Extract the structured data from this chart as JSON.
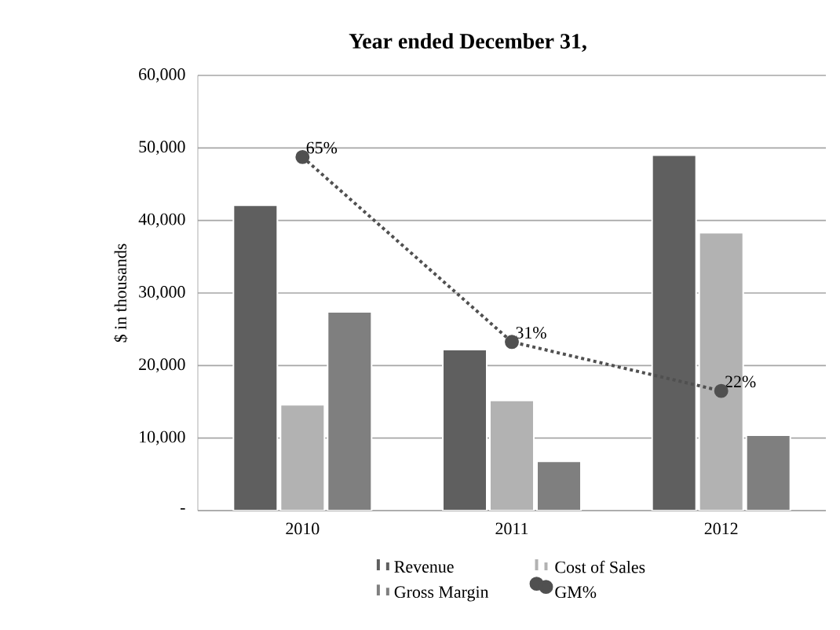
{
  "chart_data": {
    "type": "bar",
    "title": "Year ended December 31,",
    "ylabel": "$ in thousands",
    "categories": [
      "2010",
      "2011",
      "2012"
    ],
    "series": [
      {
        "name": "Revenue",
        "color": "#5f5f5f",
        "values": [
          42100,
          22200,
          49000
        ]
      },
      {
        "name": "Cost of Sales",
        "color": "#b2b2b2",
        "values": [
          14600,
          15200,
          38300
        ]
      },
      {
        "name": "Gross Margin",
        "color": "#7f7f7f",
        "values": [
          27400,
          6800,
          10400
        ]
      },
      {
        "name": "GM%",
        "type": "line",
        "axis": "y2",
        "color": "#505050",
        "values": [
          65,
          31,
          22
        ],
        "value_labels": [
          "65%",
          "31%",
          "22%"
        ],
        "marker": "circle",
        "line_style": "dotted"
      }
    ],
    "ylim": [
      0,
      60000
    ],
    "yticks": [
      {
        "value": 0,
        "label": "-"
      },
      {
        "value": 10000,
        "label": "10,000"
      },
      {
        "value": 20000,
        "label": "20,000"
      },
      {
        "value": 30000,
        "label": "30,000"
      },
      {
        "value": 40000,
        "label": "40,000"
      },
      {
        "value": 50000,
        "label": "50,000"
      },
      {
        "value": 60000,
        "label": "60,000"
      }
    ],
    "y2lim": [
      0,
      80
    ],
    "grid": "y",
    "legend": "bottom"
  }
}
